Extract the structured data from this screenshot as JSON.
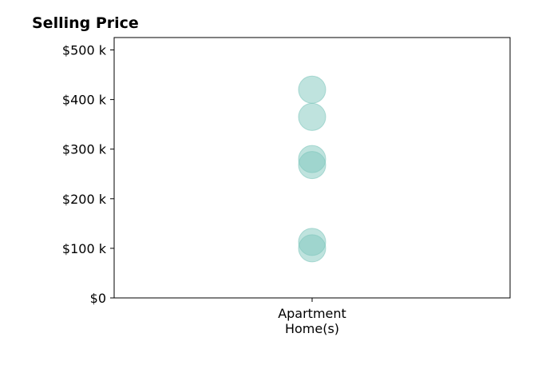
{
  "chart_data": {
    "type": "scatter",
    "title": "Selling Price",
    "xlabel": "",
    "ylabel": "",
    "categories": [
      "Apartment\nHome(s)"
    ],
    "x_tick_lines": [
      "Apartment",
      "Home(s)"
    ],
    "y_ticks": [
      0,
      100000,
      200000,
      300000,
      400000,
      500000
    ],
    "y_tick_labels": [
      "$0",
      "$100 k",
      "$200 k",
      "$300 k",
      "$400 k",
      "$500 k"
    ],
    "ylim": [
      0,
      525000
    ],
    "grid": false,
    "legend": "none",
    "marker_color": "#7fc7bd",
    "series": [
      {
        "category": "Apartment\nHome(s)",
        "values": [
          420000,
          365000,
          280000,
          268000,
          113000,
          100000
        ]
      }
    ]
  }
}
